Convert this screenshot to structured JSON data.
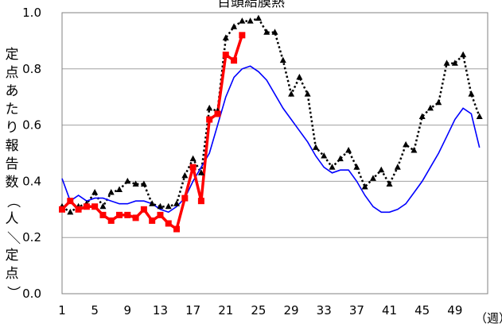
{
  "chart_data": {
    "type": "line",
    "title": "百頭結膜熱",
    "ylabel": "定点あたり報告数（人／定点）",
    "xlabel": "（週）",
    "ylim": [
      0,
      1.0
    ],
    "xlim": [
      1,
      53
    ],
    "yticks": [
      "0.0",
      "0.2",
      "0.4",
      "0.6",
      "0.8",
      "1.0"
    ],
    "xticks": [
      1,
      5,
      9,
      13,
      17,
      21,
      25,
      29,
      33,
      37,
      41,
      45,
      49
    ],
    "xtick_labels": [
      "1",
      "5",
      "9",
      "13",
      "17",
      "21",
      "25",
      "29",
      "33",
      "37",
      "41",
      "45",
      "49"
    ],
    "grid": "horizontal",
    "legend": "none",
    "series": [
      {
        "style": "black-dotted-triangles",
        "color": "#000000",
        "x": [
          1,
          2,
          3,
          4,
          5,
          6,
          7,
          8,
          9,
          10,
          11,
          12,
          13,
          14,
          15,
          16,
          17,
          18,
          19,
          20,
          21,
          22,
          23,
          24,
          25,
          26,
          27,
          28,
          29,
          30,
          31,
          32,
          33,
          34,
          35,
          36,
          37,
          38,
          39,
          40,
          41,
          42,
          43,
          44,
          45,
          46,
          47,
          48,
          49,
          50,
          51,
          52,
          53
        ],
        "values": [
          0.31,
          0.29,
          0.31,
          0.32,
          0.36,
          0.31,
          0.36,
          0.37,
          0.4,
          0.39,
          0.39,
          0.32,
          0.31,
          0.31,
          0.32,
          0.42,
          0.48,
          0.43,
          0.66,
          0.65,
          0.91,
          0.95,
          0.97,
          0.97,
          0.98,
          0.93,
          0.93,
          0.83,
          0.71,
          0.77,
          0.71,
          0.52,
          0.49,
          0.45,
          0.48,
          0.51,
          0.45,
          0.38,
          0.41,
          0.44,
          0.39,
          0.45,
          0.53,
          0.51,
          0.63,
          0.66,
          0.68,
          0.82,
          0.82,
          0.85,
          0.71,
          0.63,
          null
        ]
      },
      {
        "style": "blue-solid",
        "color": "#0000ff",
        "x": [
          1,
          2,
          3,
          4,
          5,
          6,
          7,
          8,
          9,
          10,
          11,
          12,
          13,
          14,
          15,
          16,
          17,
          18,
          19,
          20,
          21,
          22,
          23,
          24,
          25,
          26,
          27,
          28,
          29,
          30,
          31,
          32,
          33,
          34,
          35,
          36,
          37,
          38,
          39,
          40,
          41,
          42,
          43,
          44,
          45,
          46,
          47,
          48,
          49,
          50,
          51,
          52
        ],
        "values": [
          0.41,
          0.33,
          0.35,
          0.33,
          0.34,
          0.34,
          0.33,
          0.32,
          0.32,
          0.33,
          0.33,
          0.32,
          0.3,
          0.29,
          0.31,
          0.34,
          0.4,
          0.45,
          0.5,
          0.6,
          0.7,
          0.77,
          0.8,
          0.81,
          0.79,
          0.76,
          0.71,
          0.66,
          0.62,
          0.58,
          0.54,
          0.49,
          0.45,
          0.43,
          0.44,
          0.44,
          0.4,
          0.35,
          0.31,
          0.29,
          0.29,
          0.3,
          0.32,
          0.36,
          0.4,
          0.45,
          0.5,
          0.56,
          0.62,
          0.66,
          0.64,
          0.52
        ]
      },
      {
        "style": "red-thick-squares",
        "color": "#ff0000",
        "x": [
          1,
          2,
          3,
          4,
          5,
          6,
          7,
          8,
          9,
          10,
          11,
          12,
          13,
          14,
          15,
          16,
          17,
          18,
          19,
          20,
          21,
          22,
          23
        ],
        "values": [
          0.3,
          0.33,
          0.3,
          0.31,
          0.31,
          0.28,
          0.26,
          0.28,
          0.28,
          0.27,
          0.3,
          0.26,
          0.28,
          0.25,
          0.23,
          0.34,
          0.45,
          0.33,
          0.62,
          0.64,
          0.85,
          0.83,
          0.92
        ]
      }
    ]
  }
}
